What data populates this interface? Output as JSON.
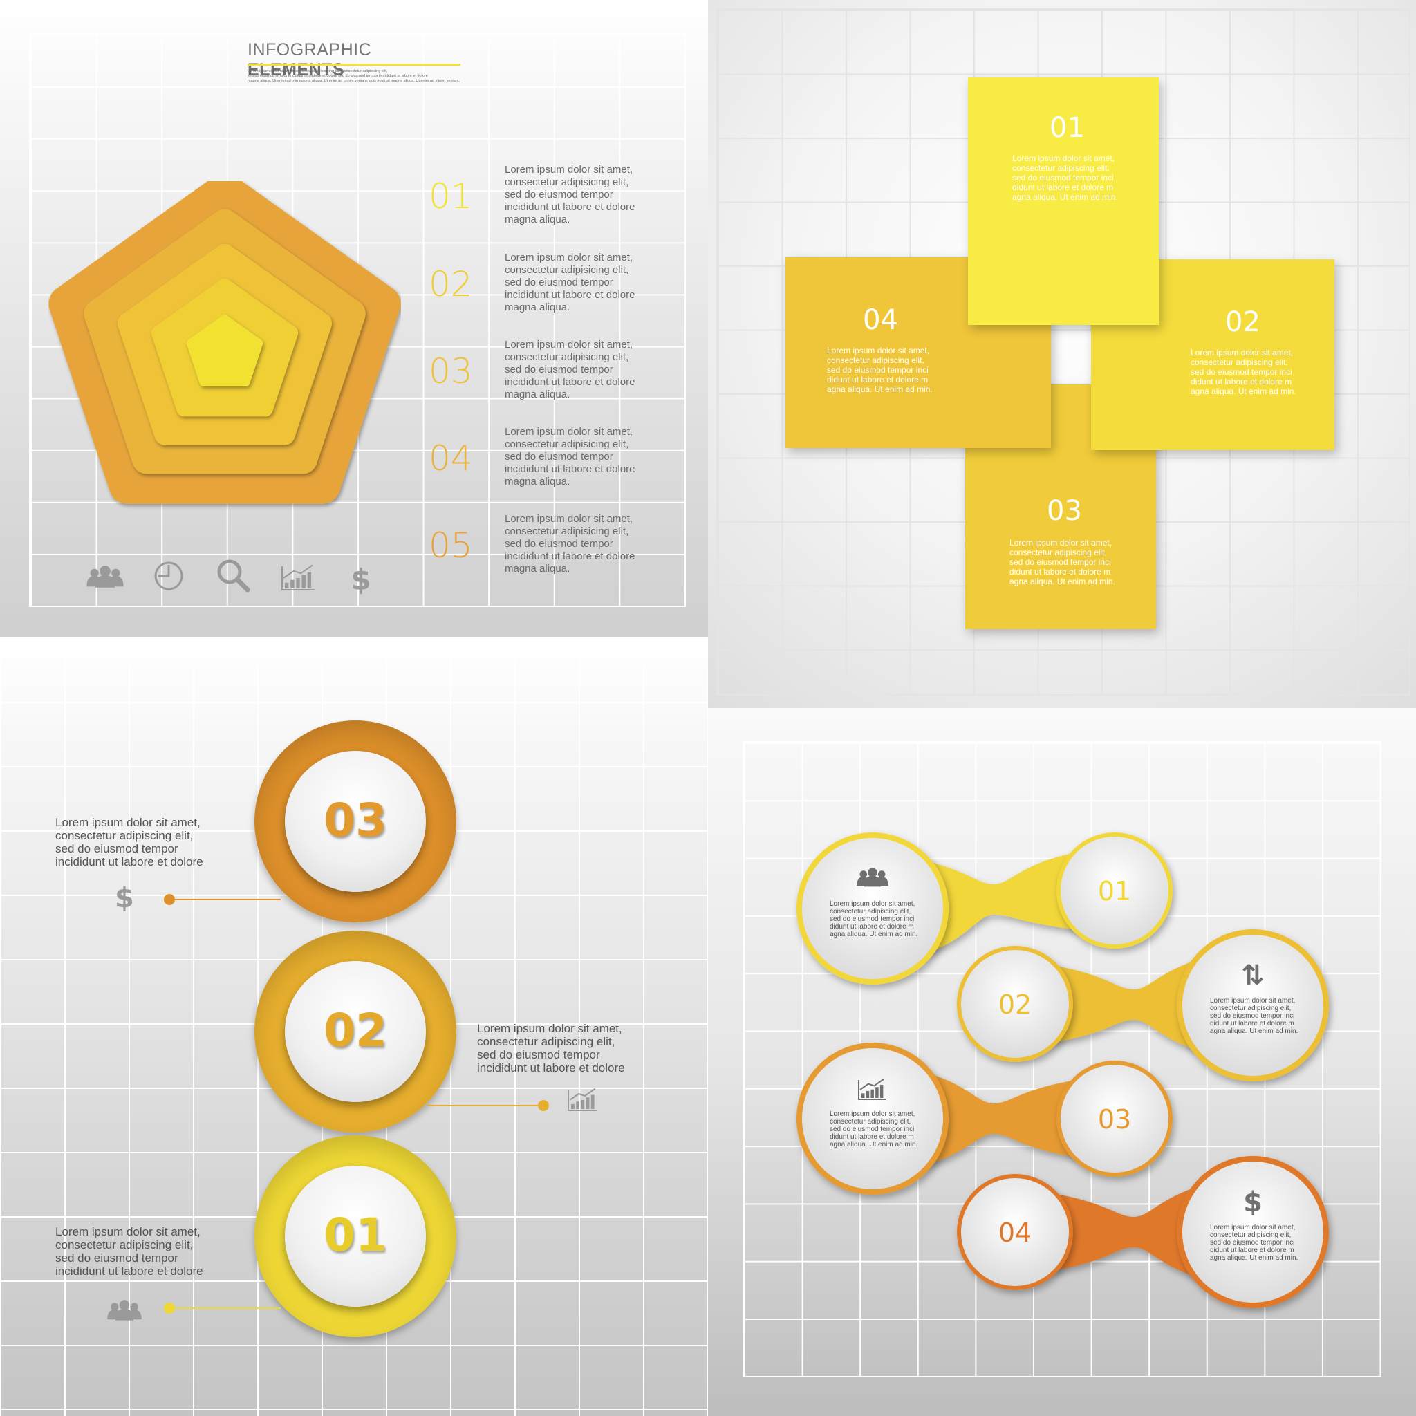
{
  "header": {
    "title_light": "INFOGRAPHIC",
    "title_bold": "ELEMENTS",
    "subtitle": "Lorem ipsum dolor sit amet, consectetur adipisicing elit, consectetur adipisicing elit,\nsed do eiusmod tempor in cididunt ut labore et dolore sed do eiusmod tempor in cididunt ut labore et dolore\nmagna aliqua. Ut enim ad min magna aliqua. Ut enim ad minim veniam, quis nostrud magna aliqua. Ut enim ad minim veniam, quis nostrud"
  },
  "pentagon_panel": {
    "steps": [
      {
        "number": "01",
        "color": "#f3e133",
        "text": "Lorem ipsum dolor sit amet,\nconsectetur adipisicing elit,\nsed do eiusmod tempor\nincididunt ut labore et dolore\nmagna aliqua."
      },
      {
        "number": "02",
        "color": "#f0cf35",
        "text": "Lorem ipsum dolor sit amet,\nconsectetur adipisicing elit,\nsed do eiusmod tempor\nincididunt ut labore et dolore\nmagna aliqua."
      },
      {
        "number": "03",
        "color": "#f0c239",
        "text": "Lorem ipsum dolor sit amet,\nconsectetur adipisicing elit,\nsed do eiusmod tempor\nincididunt ut labore et dolore\nmagna aliqua."
      },
      {
        "number": "04",
        "color": "#eab43a",
        "text": "Lorem ipsum dolor sit amet,\nconsectetur adipisicing elit,\nsed do eiusmod tempor\nincididunt ut labore et dolore\nmagna aliqua."
      },
      {
        "number": "05",
        "color": "#e7a43a",
        "text": "Lorem ipsum dolor sit amet,\nconsectetur adipisicing elit,\nsed do eiusmod tempor\nincididunt ut labore et dolore\nmagna aliqua."
      }
    ],
    "icons": [
      "people-icon",
      "clock-icon",
      "search-icon",
      "bar-chart-icon",
      "dollar-icon"
    ],
    "dollar_glyph": "$"
  },
  "cross_panel": {
    "cards": [
      {
        "number": "01",
        "color": "#f8eb44",
        "text": "Lorem ipsum dolor sit amet,\nconsectetur adipiscing elit,\nsed do eiusmod tempor inci\ndidunt ut labore et dolore m\nagna aliqua. Ut enim ad min."
      },
      {
        "number": "02",
        "color": "#f4dc3c",
        "text": "Lorem ipsum dolor sit amet,\nconsectetur adipiscing elit,\nsed do eiusmod tempor inci\ndidunt ut labore et dolore m\nagna aliqua. Ut enim ad min."
      },
      {
        "number": "03",
        "color": "#f1cc3a",
        "text": "Lorem ipsum dolor sit amet,\nconsectetur adipiscing elit,\nsed do eiusmod tempor inci\ndidunt ut labore et dolore m\nagna aliqua. Ut enim ad min."
      },
      {
        "number": "04",
        "color": "#efc63a",
        "text": "Lorem ipsum dolor sit amet,\nconsectetur adipiscing elit,\nsed do eiusmod tempor inci\ndidunt ut labore et dolore m\nagna aliqua. Ut enim ad min."
      }
    ]
  },
  "circles_panel": {
    "items": [
      {
        "number": "03",
        "ring": "#dc8f2a",
        "num_color": "#e29a2e",
        "icon": "dollar-icon",
        "icon_glyph": "$",
        "text": "Lorem ipsum dolor sit amet,\nconsectetur adipiscing elit,\n          sed do eiusmod tempor\n          incididunt ut labore et dolore"
      },
      {
        "number": "02",
        "ring": "#e6ae2e",
        "num_color": "#e4a92b",
        "icon": "bar-chart-icon",
        "text": "Lorem ipsum dolor sit amet,\nconsectetur adipiscing elit,\n          sed do eiusmod tempor\n          incididunt ut labore et dolore"
      },
      {
        "number": "01",
        "ring": "#eed735",
        "num_color": "#e8cc2c",
        "icon": "people-icon",
        "text": "Lorem ipsum dolor sit amet,\nconsectetur adipiscing elit,\n          sed do eiusmod tempor\n          incididunt ut labore et dolore"
      }
    ]
  },
  "linked_panel": {
    "rows": [
      {
        "number": "01",
        "color": "#f2d73a",
        "icon": "people-icon",
        "text": "Lorem ipsum dolor sit amet,\nconsectetur adipiscing elit,\nsed do eiusmod tempor inci\ndidunt ut labore et dolore m\nagna aliqua. Ut enim ad min."
      },
      {
        "number": "02",
        "color": "#ecbf34",
        "icon": "up-down-arrows-icon",
        "icon_glyph": "⇅",
        "text": "Lorem ipsum dolor sit amet,\nconsectetur adipiscing elit,\nsed do eiusmod tempor inci\ndidunt ut labore et dolore m\nagna aliqua. Ut enim ad min."
      },
      {
        "number": "03",
        "color": "#e69a30",
        "icon": "bar-chart-icon",
        "text": "Lorem ipsum dolor sit amet,\nconsectetur adipiscing elit,\nsed do eiusmod tempor inci\ndidunt ut labore et dolore m\nagna aliqua. Ut enim ad min."
      },
      {
        "number": "04",
        "color": "#e0782c",
        "icon": "dollar-icon",
        "icon_glyph": "$",
        "text": "Lorem ipsum dolor sit amet,\nconsectetur adipiscing elit,\nsed do eiusmod tempor inci\ndidunt ut labore et dolore m\nagna aliqua. Ut enim ad min."
      }
    ]
  }
}
